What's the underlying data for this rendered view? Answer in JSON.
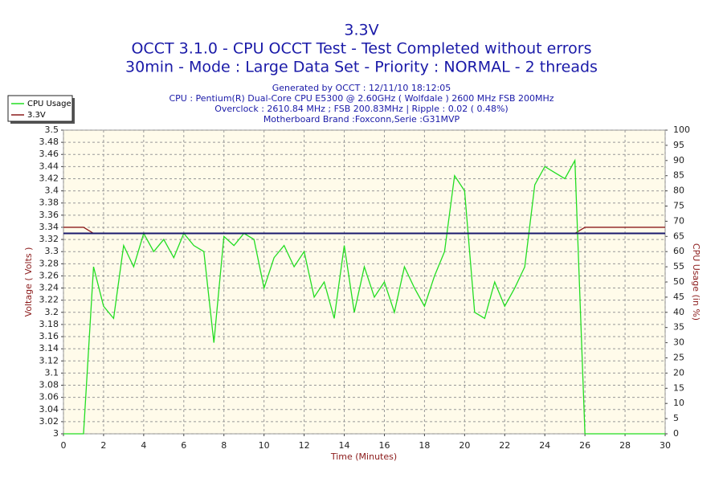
{
  "chart_data": {
    "type": "line",
    "title": "3.3V",
    "subtitle": [
      "OCCT 3.1.0 - CPU OCCT Test - Test Completed without errors",
      "30min - Mode : Large Data Set - Priority : NORMAL - 2 threads"
    ],
    "info": [
      "Generated by OCCT : 12/11/10 18:12:05",
      "CPU : Pentium(R) Dual-Core CPU E5300 @ 2.60GHz ( Wolfdale ) 2600 MHz FSB 200MHz",
      "Overclock : 2610.84 MHz ; FSB 200.83MHz | Ripple : 0.02 ( 0.48%)",
      "Motherboard Brand :Foxconn,Serie :G31MVP"
    ],
    "xlabel": "Time (Minutes)",
    "ylabel": "Voltage ( Volts )",
    "y2label": "CPU Usage (in %)",
    "x": [
      0,
      0.5,
      1,
      1.5,
      2,
      2.5,
      3,
      3.5,
      4,
      4.5,
      5,
      5.5,
      6,
      6.5,
      7,
      7.5,
      8,
      8.5,
      9,
      9.5,
      10,
      10.5,
      11,
      11.5,
      12,
      12.5,
      13,
      13.5,
      14,
      14.5,
      15,
      15.5,
      16,
      16.5,
      17,
      17.5,
      18,
      18.5,
      19,
      19.5,
      20,
      20.5,
      21,
      21.5,
      22,
      22.5,
      23,
      23.5,
      24,
      24.5,
      25,
      25.5,
      26,
      26.5,
      27,
      27.5,
      28,
      28.5,
      29,
      29.5,
      30
    ],
    "series": [
      {
        "name": "CPU Usage",
        "color": "#22dd22",
        "axis": "y2",
        "values": [
          0,
          0,
          0,
          55,
          42,
          38,
          62,
          55,
          66,
          60,
          64,
          58,
          66,
          62,
          60,
          30,
          65,
          62,
          66,
          64,
          48,
          58,
          62,
          55,
          60,
          45,
          50,
          38,
          62,
          40,
          55,
          45,
          50,
          40,
          55,
          48,
          42,
          52,
          60,
          85,
          80,
          40,
          38,
          50,
          42,
          48,
          55,
          82,
          88,
          86,
          84,
          90,
          0,
          0,
          0,
          0,
          0,
          0,
          0,
          0,
          0
        ]
      },
      {
        "name": "3.3V",
        "color": "#8b1a1a",
        "values": [
          3.34,
          3.34,
          3.34,
          3.33,
          3.33,
          3.33,
          3.33,
          3.33,
          3.33,
          3.33,
          3.33,
          3.33,
          3.33,
          3.33,
          3.33,
          3.33,
          3.33,
          3.33,
          3.33,
          3.33,
          3.33,
          3.33,
          3.33,
          3.33,
          3.33,
          3.33,
          3.33,
          3.33,
          3.33,
          3.33,
          3.33,
          3.33,
          3.33,
          3.33,
          3.33,
          3.33,
          3.33,
          3.33,
          3.33,
          3.33,
          3.33,
          3.33,
          3.33,
          3.33,
          3.33,
          3.33,
          3.33,
          3.33,
          3.33,
          3.33,
          3.33,
          3.33,
          3.34,
          3.34,
          3.34,
          3.34,
          3.34,
          3.34,
          3.34,
          3.34,
          3.34
        ]
      }
    ],
    "reference_line": {
      "value": 3.33,
      "color": "#1a1a6e"
    },
    "xlim": [
      0,
      30
    ],
    "xticks": [
      0,
      2,
      4,
      6,
      8,
      10,
      12,
      14,
      16,
      18,
      20,
      22,
      24,
      26,
      28,
      30
    ],
    "ylim": [
      3,
      3.5
    ],
    "yticks": [
      3,
      3.02,
      3.04,
      3.06,
      3.08,
      3.1,
      3.12,
      3.14,
      3.16,
      3.18,
      3.2,
      3.22,
      3.24,
      3.26,
      3.28,
      3.3,
      3.32,
      3.34,
      3.36,
      3.38,
      3.4,
      3.42,
      3.44,
      3.46,
      3.48,
      3.5
    ],
    "y2lim": [
      0,
      100
    ],
    "y2ticks": [
      0,
      5,
      10,
      15,
      20,
      25,
      30,
      35,
      40,
      45,
      50,
      55,
      60,
      65,
      70,
      75,
      80,
      85,
      90,
      95,
      100
    ],
    "grid": true,
    "legend": "top-left"
  }
}
